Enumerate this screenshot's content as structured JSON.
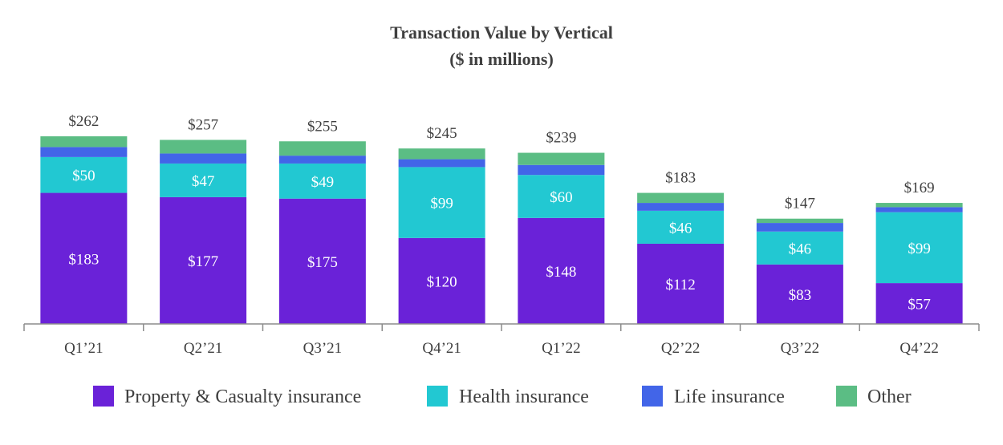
{
  "chart_data": {
    "type": "bar",
    "stacked": true,
    "title": "Transaction Value by Vertical",
    "subtitle": "($ in millions)",
    "categories": [
      "Q1’21",
      "Q2’21",
      "Q3’21",
      "Q4’21",
      "Q1’22",
      "Q2’22",
      "Q3’22",
      "Q4’22"
    ],
    "totals": [
      262,
      257,
      255,
      245,
      239,
      183,
      147,
      169
    ],
    "total_labels": [
      "$262",
      "$257",
      "$255",
      "$245",
      "$239",
      "$183",
      "$147",
      "$169"
    ],
    "series": [
      {
        "name": "Property & Casualty insurance",
        "color": "#6a22d8",
        "values": [
          183,
          177,
          175,
          120,
          148,
          112,
          83,
          57
        ],
        "labels": [
          "$183",
          "$177",
          "$175",
          "$120",
          "$148",
          "$112",
          "$83",
          "$57"
        ]
      },
      {
        "name": "Health insurance",
        "color": "#22c8d2",
        "values": [
          50,
          47,
          49,
          99,
          60,
          46,
          46,
          99
        ],
        "labels": [
          "$50",
          "$47",
          "$49",
          "$99",
          "$60",
          "$46",
          "$46",
          "$99"
        ]
      },
      {
        "name": "Life insurance",
        "color": "#4265e8",
        "values": [
          14,
          14,
          11,
          11,
          14,
          11,
          12,
          7
        ]
      },
      {
        "name": "Other",
        "color": "#5bbd84",
        "values": [
          15,
          19,
          20,
          15,
          17,
          14,
          6,
          6
        ]
      }
    ],
    "ylim": [
      0,
      262
    ],
    "grid": false,
    "legend_position": "bottom"
  }
}
